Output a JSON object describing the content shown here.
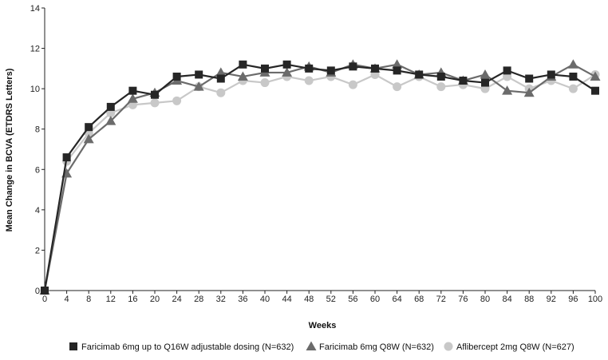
{
  "chart_data": {
    "type": "line",
    "xlabel": "Weeks",
    "ylabel": "Mean Change in BCVA (ETDRS Letters)",
    "x": [
      0,
      4,
      8,
      12,
      16,
      20,
      24,
      28,
      32,
      36,
      40,
      44,
      48,
      52,
      56,
      60,
      64,
      68,
      72,
      76,
      80,
      84,
      88,
      92,
      96,
      100
    ],
    "xticks": [
      0,
      4,
      8,
      12,
      16,
      20,
      24,
      28,
      32,
      36,
      40,
      44,
      48,
      52,
      56,
      60,
      64,
      68,
      72,
      76,
      80,
      84,
      88,
      92,
      96,
      100
    ],
    "xlim": [
      0,
      100
    ],
    "ylim": [
      0,
      14
    ],
    "yticks": [
      0,
      2,
      4,
      6,
      8,
      10,
      12,
      14
    ],
    "grid": false,
    "legend_position": "bottom",
    "series": [
      {
        "name": "Faricimab 6mg up to Q16W adjustable dosing (N=632)",
        "marker": "square",
        "color": "#262626",
        "values": [
          0,
          6.6,
          8.1,
          9.1,
          9.9,
          9.7,
          10.6,
          10.7,
          10.5,
          11.2,
          11.0,
          11.2,
          11.0,
          10.9,
          11.1,
          11.0,
          10.9,
          10.7,
          10.6,
          10.4,
          10.3,
          10.9,
          10.5,
          10.7,
          10.6,
          9.9
        ]
      },
      {
        "name": "Faricimab 6mg Q8W (N=632)",
        "marker": "triangle",
        "color": "#6b6b6b",
        "values": [
          0,
          5.8,
          7.5,
          8.4,
          9.5,
          9.8,
          10.4,
          10.1,
          10.8,
          10.6,
          10.8,
          10.8,
          11.1,
          10.8,
          11.2,
          11.0,
          11.2,
          10.7,
          10.8,
          10.4,
          10.7,
          9.9,
          9.8,
          10.6,
          11.2,
          10.6
        ]
      },
      {
        "name": "Aflibercept 2mg Q8W (N=627)",
        "marker": "circle",
        "color": "#c8c8c8",
        "values": [
          0,
          6.4,
          7.8,
          8.8,
          9.2,
          9.3,
          9.4,
          10.1,
          9.8,
          10.4,
          10.3,
          10.6,
          10.4,
          10.6,
          10.2,
          10.7,
          10.1,
          10.6,
          10.1,
          10.2,
          10.0,
          10.6,
          10.0,
          10.4,
          10.0,
          10.7
        ]
      }
    ]
  }
}
